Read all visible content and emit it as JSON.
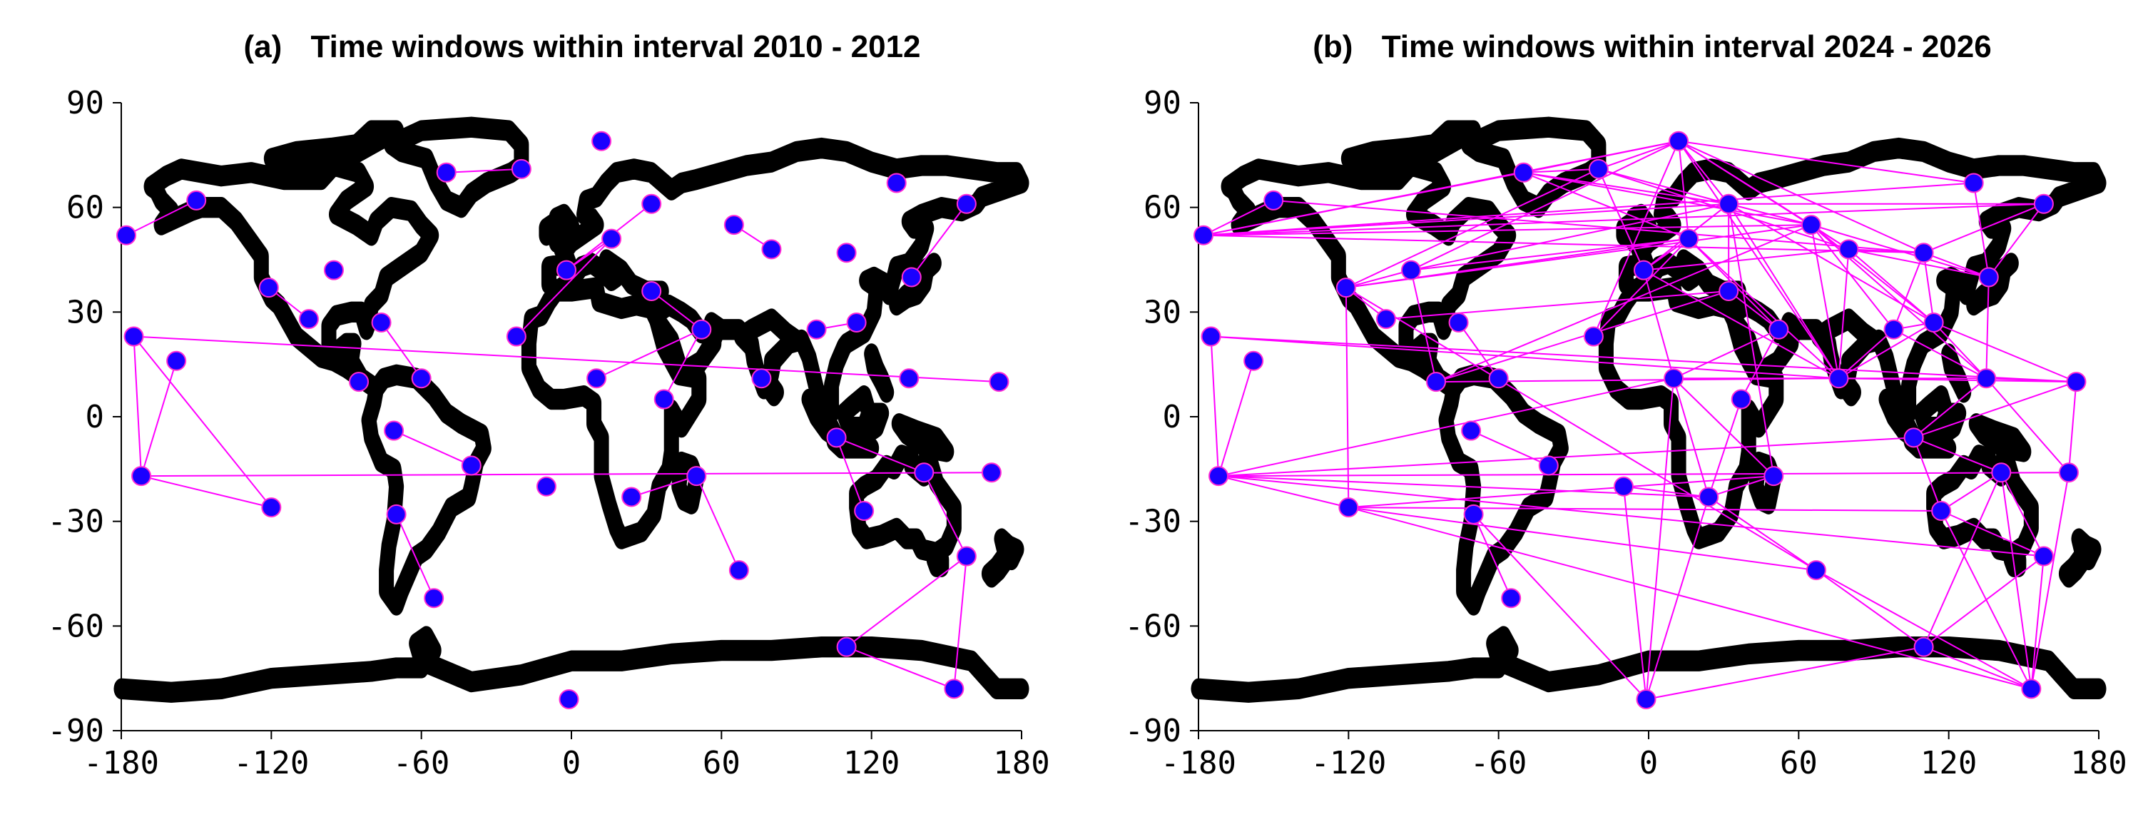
{
  "chart_data": [
    {
      "type": "scatter",
      "panel": "(a)",
      "title": "Time windows within interval 2010 - 2012",
      "xlabel": "",
      "ylabel": "",
      "xlim": [
        -180,
        180
      ],
      "ylim": [
        -90,
        90
      ],
      "xticks": [
        -180,
        -120,
        -60,
        0,
        60,
        120,
        180
      ],
      "yticks": [
        90,
        60,
        30,
        0,
        -30,
        -60,
        -90
      ],
      "xtick_labels": [
        "-180",
        "-120",
        "-60",
        "0",
        "60",
        "120",
        "180"
      ],
      "ytick_labels": [
        "90",
        "60",
        "30",
        "0",
        "-30",
        "-60",
        "-90"
      ],
      "colors": {
        "points": "#1a00ff",
        "links": "#ff00ff",
        "coastline": "#000000"
      },
      "points": [
        {
          "x": -178,
          "y": 52
        },
        {
          "x": -150,
          "y": 62
        },
        {
          "x": -121,
          "y": 37
        },
        {
          "x": -105,
          "y": 28
        },
        {
          "x": -95,
          "y": 42
        },
        {
          "x": -76,
          "y": 27
        },
        {
          "x": -85,
          "y": 10
        },
        {
          "x": -60,
          "y": 11
        },
        {
          "x": -175,
          "y": 23
        },
        {
          "x": -158,
          "y": 16
        },
        {
          "x": -172,
          "y": -17
        },
        {
          "x": -120,
          "y": -26
        },
        {
          "x": -71,
          "y": -4
        },
        {
          "x": -70,
          "y": -28
        },
        {
          "x": -40,
          "y": -14
        },
        {
          "x": -55,
          "y": -52
        },
        {
          "x": -50,
          "y": 70
        },
        {
          "x": -20,
          "y": 71
        },
        {
          "x": -22,
          "y": 23
        },
        {
          "x": -10,
          "y": -20
        },
        {
          "x": 12,
          "y": 79
        },
        {
          "x": 32,
          "y": 61
        },
        {
          "x": 16,
          "y": 51
        },
        {
          "x": -2,
          "y": 42
        },
        {
          "x": 32,
          "y": 36
        },
        {
          "x": 10,
          "y": 11
        },
        {
          "x": 37,
          "y": 5
        },
        {
          "x": 52,
          "y": 25
        },
        {
          "x": 65,
          "y": 55
        },
        {
          "x": 80,
          "y": 48
        },
        {
          "x": 76,
          "y": 11
        },
        {
          "x": 50,
          "y": -17
        },
        {
          "x": 24,
          "y": -23
        },
        {
          "x": 67,
          "y": -44
        },
        {
          "x": 98,
          "y": 25
        },
        {
          "x": 110,
          "y": 47
        },
        {
          "x": 114,
          "y": 27
        },
        {
          "x": 130,
          "y": 67
        },
        {
          "x": 136,
          "y": 40
        },
        {
          "x": 158,
          "y": 61
        },
        {
          "x": 135,
          "y": 11
        },
        {
          "x": 106,
          "y": -6
        },
        {
          "x": 117,
          "y": -27
        },
        {
          "x": 141,
          "y": -16
        },
        {
          "x": 168,
          "y": -16
        },
        {
          "x": 158,
          "y": -40
        },
        {
          "x": 171,
          "y": 10
        },
        {
          "x": 110,
          "y": -66
        },
        {
          "x": 153,
          "y": -78
        },
        {
          "x": -1,
          "y": -81
        }
      ],
      "links": [
        [
          0,
          1
        ],
        [
          2,
          3
        ],
        [
          5,
          7
        ],
        [
          8,
          10
        ],
        [
          8,
          11
        ],
        [
          9,
          10
        ],
        [
          10,
          11
        ],
        [
          8,
          46
        ],
        [
          10,
          44
        ],
        [
          12,
          14
        ],
        [
          13,
          15
        ],
        [
          16,
          17
        ],
        [
          18,
          22
        ],
        [
          22,
          23
        ],
        [
          23,
          21
        ],
        [
          25,
          27
        ],
        [
          26,
          27
        ],
        [
          24,
          27
        ],
        [
          28,
          29
        ],
        [
          32,
          31
        ],
        [
          31,
          33
        ],
        [
          36,
          34
        ],
        [
          38,
          39
        ],
        [
          41,
          42
        ],
        [
          41,
          43
        ],
        [
          43,
          45
        ],
        [
          45,
          47
        ],
        [
          45,
          48
        ],
        [
          47,
          48
        ]
      ]
    },
    {
      "type": "scatter",
      "panel": "(b)",
      "title": "Time windows within interval 2024 - 2026",
      "xlabel": "",
      "ylabel": "",
      "xlim": [
        -180,
        180
      ],
      "ylim": [
        -90,
        90
      ],
      "xticks": [
        -180,
        -120,
        -60,
        0,
        60,
        120,
        180
      ],
      "yticks": [
        90,
        60,
        30,
        0,
        -30,
        -60,
        -90
      ],
      "xtick_labels": [
        "-180",
        "-120",
        "-60",
        "0",
        "60",
        "120",
        "180"
      ],
      "ytick_labels": [
        "90",
        "60",
        "30",
        "0",
        "-30",
        "-60",
        "-90"
      ],
      "colors": {
        "points": "#1a00ff",
        "links": "#ff00ff",
        "coastline": "#000000"
      },
      "points": [
        {
          "x": -178,
          "y": 52
        },
        {
          "x": -150,
          "y": 62
        },
        {
          "x": -121,
          "y": 37
        },
        {
          "x": -105,
          "y": 28
        },
        {
          "x": -95,
          "y": 42
        },
        {
          "x": -76,
          "y": 27
        },
        {
          "x": -85,
          "y": 10
        },
        {
          "x": -60,
          "y": 11
        },
        {
          "x": -175,
          "y": 23
        },
        {
          "x": -158,
          "y": 16
        },
        {
          "x": -172,
          "y": -17
        },
        {
          "x": -120,
          "y": -26
        },
        {
          "x": -71,
          "y": -4
        },
        {
          "x": -70,
          "y": -28
        },
        {
          "x": -40,
          "y": -14
        },
        {
          "x": -55,
          "y": -52
        },
        {
          "x": -50,
          "y": 70
        },
        {
          "x": -20,
          "y": 71
        },
        {
          "x": -22,
          "y": 23
        },
        {
          "x": -10,
          "y": -20
        },
        {
          "x": 12,
          "y": 79
        },
        {
          "x": 32,
          "y": 61
        },
        {
          "x": 16,
          "y": 51
        },
        {
          "x": -2,
          "y": 42
        },
        {
          "x": 32,
          "y": 36
        },
        {
          "x": 10,
          "y": 11
        },
        {
          "x": 37,
          "y": 5
        },
        {
          "x": 52,
          "y": 25
        },
        {
          "x": 65,
          "y": 55
        },
        {
          "x": 80,
          "y": 48
        },
        {
          "x": 76,
          "y": 11
        },
        {
          "x": 50,
          "y": -17
        },
        {
          "x": 24,
          "y": -23
        },
        {
          "x": 67,
          "y": -44
        },
        {
          "x": 98,
          "y": 25
        },
        {
          "x": 110,
          "y": 47
        },
        {
          "x": 114,
          "y": 27
        },
        {
          "x": 130,
          "y": 67
        },
        {
          "x": 136,
          "y": 40
        },
        {
          "x": 158,
          "y": 61
        },
        {
          "x": 135,
          "y": 11
        },
        {
          "x": 106,
          "y": -6
        },
        {
          "x": 117,
          "y": -27
        },
        {
          "x": 141,
          "y": -16
        },
        {
          "x": 168,
          "y": -16
        },
        {
          "x": 158,
          "y": -40
        },
        {
          "x": 171,
          "y": 10
        },
        {
          "x": 110,
          "y": -66
        },
        {
          "x": 153,
          "y": -78
        },
        {
          "x": -1,
          "y": -81
        }
      ],
      "links": [
        [
          0,
          1
        ],
        [
          0,
          16
        ],
        [
          0,
          20
        ],
        [
          0,
          21
        ],
        [
          0,
          28
        ],
        [
          0,
          35
        ],
        [
          0,
          37
        ],
        [
          0,
          39
        ],
        [
          2,
          3
        ],
        [
          2,
          4
        ],
        [
          2,
          11
        ],
        [
          2,
          17
        ],
        [
          2,
          22
        ],
        [
          2,
          28
        ],
        [
          4,
          20
        ],
        [
          4,
          21
        ],
        [
          4,
          22
        ],
        [
          5,
          7
        ],
        [
          6,
          28
        ],
        [
          6,
          30
        ],
        [
          6,
          4
        ],
        [
          8,
          10
        ],
        [
          8,
          30
        ],
        [
          8,
          46
        ],
        [
          9,
          10
        ],
        [
          10,
          11
        ],
        [
          10,
          32
        ],
        [
          10,
          41
        ],
        [
          10,
          44
        ],
        [
          10,
          25
        ],
        [
          11,
          33
        ],
        [
          11,
          42
        ],
        [
          11,
          31
        ],
        [
          12,
          14
        ],
        [
          13,
          15
        ],
        [
          16,
          17
        ],
        [
          16,
          20
        ],
        [
          16,
          21
        ],
        [
          16,
          28
        ],
        [
          16,
          22
        ],
        [
          17,
          20
        ],
        [
          17,
          21
        ],
        [
          17,
          23
        ],
        [
          17,
          29
        ],
        [
          18,
          22
        ],
        [
          18,
          20
        ],
        [
          19,
          32
        ],
        [
          20,
          21
        ],
        [
          20,
          22
        ],
        [
          20,
          28
        ],
        [
          20,
          29
        ],
        [
          20,
          30
        ],
        [
          20,
          35
        ],
        [
          20,
          37
        ],
        [
          21,
          23
        ],
        [
          21,
          24
        ],
        [
          21,
          28
        ],
        [
          21,
          30
        ],
        [
          21,
          31
        ],
        [
          21,
          36
        ],
        [
          21,
          39
        ],
        [
          22,
          23
        ],
        [
          22,
          27
        ],
        [
          22,
          30
        ],
        [
          23,
          25
        ],
        [
          23,
          30
        ],
        [
          24,
          27
        ],
        [
          25,
          27
        ],
        [
          25,
          32
        ],
        [
          25,
          30
        ],
        [
          26,
          27
        ],
        [
          28,
          29
        ],
        [
          28,
          30
        ],
        [
          28,
          34
        ],
        [
          28,
          36
        ],
        [
          28,
          40
        ],
        [
          28,
          38
        ],
        [
          29,
          30
        ],
        [
          29,
          35
        ],
        [
          29,
          36
        ],
        [
          29,
          38
        ],
        [
          30,
          34
        ],
        [
          30,
          36
        ],
        [
          30,
          40
        ],
        [
          30,
          46
        ],
        [
          31,
          32
        ],
        [
          32,
          33
        ],
        [
          32,
          49
        ],
        [
          33,
          47
        ],
        [
          33,
          48
        ],
        [
          34,
          35
        ],
        [
          34,
          36
        ],
        [
          34,
          40
        ],
        [
          35,
          36
        ],
        [
          35,
          38
        ],
        [
          35,
          39
        ],
        [
          36,
          40
        ],
        [
          37,
          38
        ],
        [
          38,
          39
        ],
        [
          38,
          40
        ],
        [
          40,
          41
        ],
        [
          40,
          46
        ],
        [
          41,
          42
        ],
        [
          41,
          43
        ],
        [
          41,
          46
        ],
        [
          42,
          45
        ],
        [
          42,
          43
        ],
        [
          43,
          45
        ],
        [
          43,
          48
        ],
        [
          44,
          46
        ],
        [
          45,
          47
        ],
        [
          45,
          48
        ],
        [
          47,
          48
        ],
        [
          47,
          49
        ],
        [
          43,
          47
        ],
        [
          44,
          48
        ],
        [
          11,
          48
        ],
        [
          10,
          45
        ],
        [
          42,
          48
        ],
        [
          31,
          25
        ],
        [
          26,
          32
        ],
        [
          36,
          46
        ],
        [
          40,
          44
        ],
        [
          1,
          35
        ],
        [
          49,
          25
        ],
        [
          6,
          24
        ],
        [
          3,
          24
        ],
        [
          2,
          33
        ],
        [
          23,
          29
        ],
        [
          19,
          49
        ],
        [
          13,
          49
        ]
      ]
    }
  ]
}
